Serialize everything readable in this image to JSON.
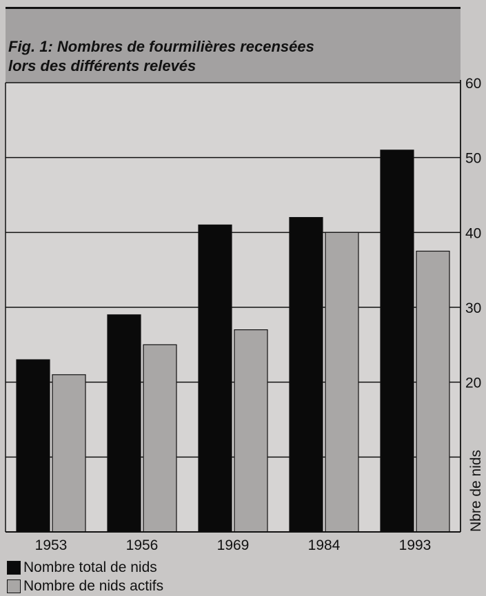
{
  "chart_data": {
    "type": "bar",
    "title": "Fig. 1: Nombres de fourmilières recensées\nlors des différents relevés",
    "ylabel": "Nbre de nids",
    "ylim": [
      0,
      60
    ],
    "yticks": [
      20,
      30,
      40,
      50,
      60
    ],
    "gridlines": [
      10,
      20,
      30,
      40,
      50,
      60
    ],
    "grid": true,
    "yaxis_side": "right",
    "legend_position": "bottom-left",
    "categories": [
      "1953",
      "1956",
      "1969",
      "1984",
      "1993"
    ],
    "series": [
      {
        "name": "Nombre total de nids",
        "color": "#0a0a0a",
        "values": [
          23,
          29,
          41,
          42,
          51
        ]
      },
      {
        "name": "Nombre de nids actifs",
        "color": "#a9a7a6",
        "values": [
          21,
          25,
          27,
          40,
          37.5
        ]
      }
    ]
  }
}
